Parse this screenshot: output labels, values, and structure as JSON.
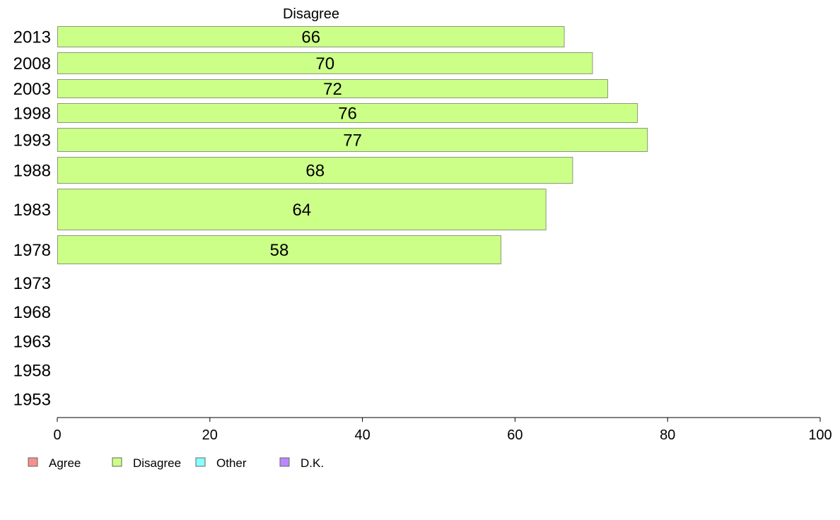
{
  "chart_data": {
    "type": "bar",
    "orientation": "horizontal",
    "title": "Disagree",
    "categories": [
      "2013",
      "2008",
      "2003",
      "1998",
      "1993",
      "1988",
      "1983",
      "1978",
      "1973",
      "1968",
      "1963",
      "1958",
      "1953"
    ],
    "series": [
      {
        "name": "Disagree",
        "values": [
          66.5,
          70.2,
          72.2,
          76.1,
          77.4,
          67.6,
          64.1,
          58.2,
          null,
          null,
          null,
          null,
          null
        ],
        "labels": [
          "66",
          "70",
          "72",
          "76",
          "77",
          "68",
          "64",
          "58",
          "",
          "",
          "",
          "",
          ""
        ]
      }
    ],
    "xlim": [
      0,
      100
    ],
    "xticks": [
      "0",
      "20",
      "40",
      "60",
      "80",
      "100"
    ],
    "legend": {
      "placement": "bottom-left",
      "entries": [
        "Agree",
        "Disagree",
        "Other",
        "D.K."
      ]
    },
    "colors": {
      "Agree": "#f78f8f",
      "Disagree": "#ccff88",
      "Other": "#88ffff",
      "D.K.": "#bb88ff",
      "bar_stroke": "#8a9a7a",
      "axis": "#000000"
    },
    "grid": false
  }
}
